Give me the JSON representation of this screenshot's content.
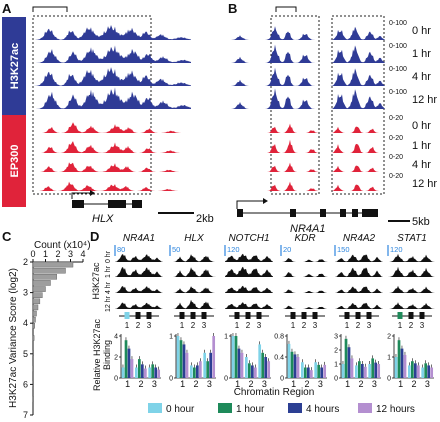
{
  "figure": {
    "panel_a": {
      "letter": "A",
      "h3k27ac_label": "H3K27ac",
      "ep300_label": "EP300",
      "gene": "HLX",
      "scale_bar": "2kb"
    },
    "panel_b": {
      "letter": "B",
      "h3k27ac_range": "0-100",
      "ep300_range": "0-20",
      "timepoints": [
        "0 hr",
        "1 hr",
        "4 hr",
        "12 hr"
      ],
      "gene": "NR4A1",
      "scale_bar": "5kb"
    },
    "panel_c": {
      "letter": "C",
      "count_label": "Count (x10⁴)",
      "y_label": "H3K27ac Variance Score (log2)"
    },
    "panel_d": {
      "letter": "D",
      "genes": [
        {
          "name": "NR4A1",
          "scale": "80"
        },
        {
          "name": "HLX",
          "scale": "50"
        },
        {
          "name": "NOTCH1",
          "scale": "120"
        },
        {
          "name": "KDR",
          "scale": "20"
        },
        {
          "name": "NR4A2",
          "scale": "150"
        },
        {
          "name": "STAT1",
          "scale": "120"
        }
      ],
      "track_label": "H3K27ac",
      "track_times": [
        "0 hr",
        "1 hr",
        "4 hr",
        "12 hr"
      ],
      "region_labels": [
        "1",
        "2",
        "3"
      ],
      "bar_y_label_1": "Relative H3K27ac",
      "bar_y_label_2": "Binding",
      "x_label": "Chromatin Region",
      "legend": [
        {
          "label": "0 hour",
          "color": "#7fd3e8"
        },
        {
          "label": "1 hour",
          "color": "#1e8a5a"
        },
        {
          "label": "4 hours",
          "color": "#2c3f93"
        },
        {
          "label": "12 hours",
          "color": "#b48fd0"
        }
      ]
    },
    "colors": {
      "h3k27ac": "#2f3b96",
      "ep300": "#e0233a",
      "scale_blue": "#2e86de"
    }
  },
  "chart_data": [
    {
      "type": "bar",
      "panel": "C",
      "orientation": "horizontal",
      "xlabel": "Count (x10⁴)",
      "ylabel": "H3K27ac Variance Score (log2)",
      "xlim": [
        0,
        4
      ],
      "ylim": [
        2,
        7
      ],
      "y_ticks": [
        2,
        3,
        4,
        5,
        6,
        7
      ],
      "x_ticks": [
        0,
        1,
        2,
        3,
        4
      ],
      "categories": [
        2.1,
        2.3,
        2.5,
        2.7,
        2.9,
        3.1,
        3.3,
        3.5,
        3.7,
        3.9,
        4.1,
        4.5,
        5.0,
        5.5,
        6.0,
        6.5
      ],
      "values": [
        3.2,
        2.6,
        1.9,
        1.4,
        1.0,
        0.75,
        0.55,
        0.4,
        0.28,
        0.2,
        0.14,
        0.09,
        0.05,
        0.03,
        0.02,
        0.01
      ]
    },
    {
      "type": "bar",
      "panel": "D",
      "xlabel": "Chromatin Region",
      "ylabel": "Relative H3K27ac Binding",
      "categories": [
        "1",
        "2",
        "3"
      ],
      "series_names": [
        "0 hour",
        "1 hour",
        "4 hours",
        "12 hours"
      ],
      "genes": [
        {
          "gene": "NR4A1",
          "ylim": [
            0,
            4
          ],
          "yticks": [
            0,
            2,
            4
          ],
          "values": [
            [
              1,
              3.6,
              2.8,
              1.8
            ],
            [
              1,
              1.8,
              1.3,
              0.9
            ],
            [
              1,
              1.3,
              1.0,
              0.8
            ]
          ]
        },
        {
          "gene": "HLX",
          "ylim": [
            0,
            1
          ],
          "yticks": [
            0,
            1
          ],
          "values": [
            [
              1,
              0.9,
              0.8,
              0.6
            ],
            [
              0.3,
              0.25,
              0.3,
              0.4
            ],
            [
              0.6,
              0.4,
              0.6,
              1.0
            ]
          ]
        },
        {
          "gene": "NOTCH1",
          "ylim": [
            0,
            1
          ],
          "yticks": [
            0,
            1
          ],
          "values": [
            [
              1,
              1.0,
              0.7,
              0.6
            ],
            [
              0.5,
              0.35,
              0.3,
              0.25
            ],
            [
              0.8,
              0.6,
              0.5,
              0.4
            ]
          ]
        },
        {
          "gene": "KDR",
          "ylim": [
            0,
            0.8
          ],
          "yticks": [
            0,
            0.4,
            0.8
          ],
          "values": [
            [
              0.65,
              0.5,
              0.45,
              0.4
            ],
            [
              0.3,
              0.2,
              0.2,
              0.15
            ],
            [
              0.3,
              0.25,
              0.2,
              0.25
            ]
          ]
        },
        {
          "gene": "NR4A2",
          "ylim": [
            0,
            3
          ],
          "yticks": [
            0,
            1,
            2,
            3
          ],
          "values": [
            [
              1,
              2.8,
              2.2,
              1.4
            ],
            [
              0.9,
              1.2,
              1.0,
              0.8
            ],
            [
              1,
              1.4,
              1.1,
              1.0
            ]
          ]
        },
        {
          "gene": "STAT1",
          "ylim": [
            0,
            2
          ],
          "yticks": [
            0,
            1,
            2
          ],
          "values": [
            [
              1,
              1.8,
              1.4,
              1.1
            ],
            [
              0.6,
              0.8,
              0.7,
              0.6
            ],
            [
              0.5,
              0.7,
              0.6,
              0.5
            ]
          ]
        }
      ]
    }
  ]
}
